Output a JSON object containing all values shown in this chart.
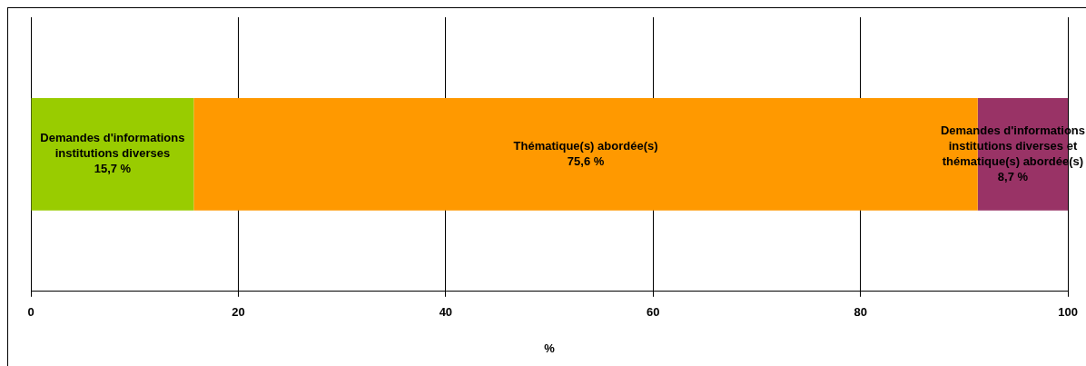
{
  "chart_data": {
    "type": "bar",
    "orientation": "horizontal",
    "stacked": true,
    "categories": [
      null
    ],
    "series": [
      {
        "name": "Demandes d'informations institutions diverses",
        "color": "#99cc00",
        "values": [
          15.7
        ],
        "value_labels": [
          "15,7 %"
        ]
      },
      {
        "name": "Thématique(s) abordée(s)",
        "color": "#ff9900",
        "values": [
          75.6
        ],
        "value_labels": [
          "75,6 %"
        ]
      },
      {
        "name": "Demandes d'informations institutions diverses et thématique(s) abordée(s)",
        "color": "#993366",
        "values": [
          8.7
        ],
        "value_labels": [
          "8,7 %"
        ]
      }
    ],
    "xlabel": "%",
    "xlim": [
      0,
      100
    ],
    "xticks": [
      0,
      20,
      40,
      60,
      80,
      100
    ],
    "grid": "x",
    "legend": false,
    "tick_labels": "x"
  }
}
